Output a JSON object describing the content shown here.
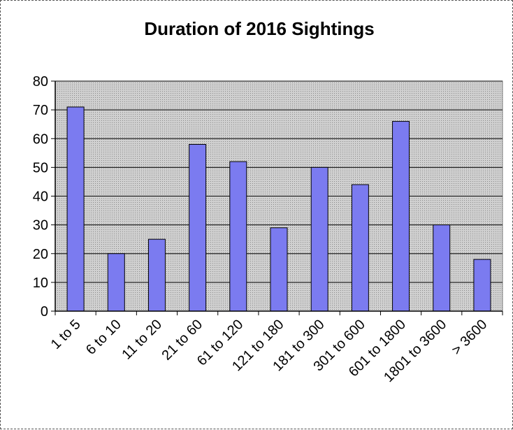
{
  "chart_data": {
    "type": "bar",
    "title": "Duration of 2016 Sightings",
    "xlabel": "",
    "ylabel": "",
    "categories": [
      "1 to 5",
      "6 to 10",
      "11 to 20",
      "21 to 60",
      "61 to 120",
      "121 to 180",
      "181 to 300",
      "301 to 600",
      "601 to 1800",
      "1801 to 3600",
      "> 3600"
    ],
    "values": [
      71,
      20,
      25,
      58,
      52,
      29,
      50,
      44,
      66,
      30,
      18
    ],
    "ylim": [
      0,
      80
    ],
    "yticks": [
      0,
      10,
      20,
      30,
      40,
      50,
      60,
      70,
      80
    ],
    "grid": true,
    "legend": "none",
    "colors": {
      "bar_fill": "#7b7bf0",
      "bar_stroke": "#000000",
      "plot_background": "#c8c8c8",
      "gridline": "#000000"
    }
  }
}
